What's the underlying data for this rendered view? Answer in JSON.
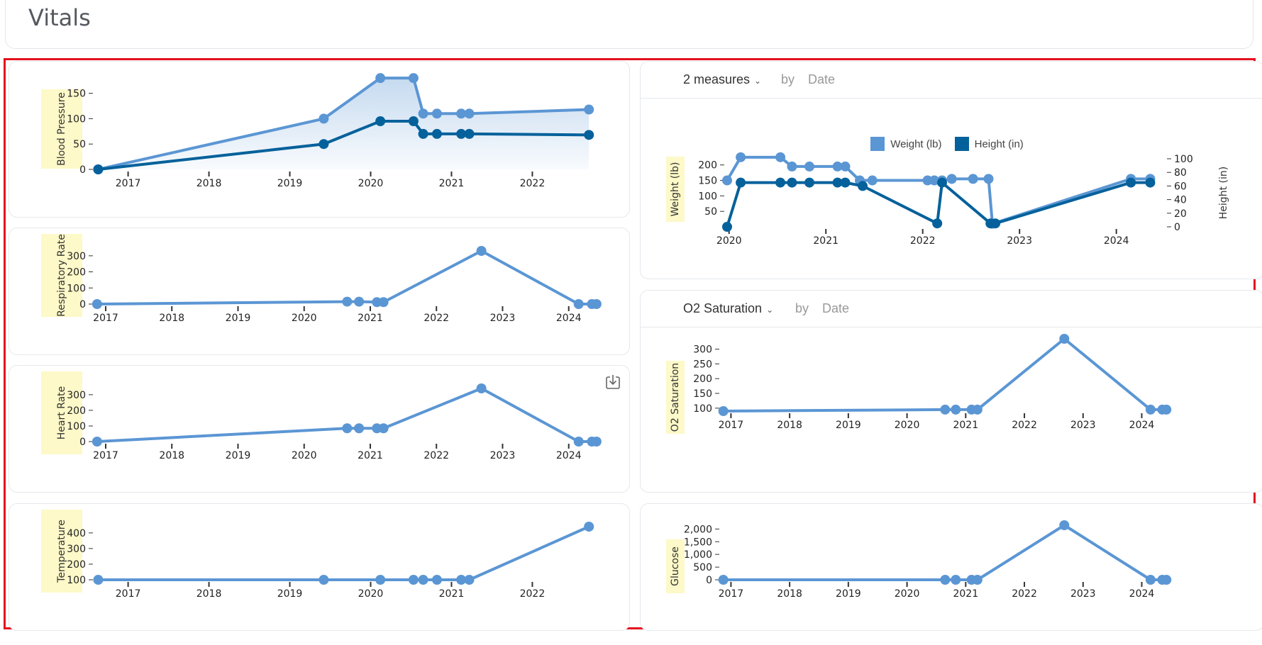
{
  "page": {
    "title": "Vitals"
  },
  "colors": {
    "light": "#5b96d4",
    "dark": "#04619b",
    "label_bg": "#fdf9c8",
    "highlight": "#e3101d"
  },
  "controls": {
    "weight_height": {
      "measure_label": "2 measures",
      "by_label": "by",
      "date_label": "Date"
    },
    "o2": {
      "measure_label": "O2 Saturation",
      "by_label": "by",
      "date_label": "Date"
    }
  },
  "legend": [
    {
      "label": "Weight (lb)",
      "color": "#5b96d4"
    },
    {
      "label": "Height (in)",
      "color": "#04619b"
    }
  ],
  "chart_data": [
    {
      "id": "blood_pressure",
      "type": "area",
      "ylabel": "Blood Pressure",
      "ylim": [
        0,
        190
      ],
      "yticks": [
        0,
        50,
        100,
        150
      ],
      "xlim": [
        2016.6,
        2022.9
      ],
      "xticks": [
        "2017",
        "2018",
        "2019",
        "2020",
        "2021",
        "2022"
      ],
      "series": [
        {
          "color": "#5b96d4",
          "x": [
            2016.63,
            2019.42,
            2020.12,
            2020.53,
            2020.65,
            2020.82,
            2021.12,
            2021.22,
            2022.7
          ],
          "y": [
            0,
            100,
            180,
            180,
            110,
            110,
            110,
            110,
            118
          ]
        },
        {
          "color": "#04619b",
          "x": [
            2016.63,
            2019.42,
            2020.12,
            2020.53,
            2020.65,
            2020.82,
            2021.12,
            2021.22,
            2022.7
          ],
          "y": [
            0,
            50,
            95,
            95,
            70,
            70,
            70,
            70,
            68
          ]
        }
      ]
    },
    {
      "id": "respiratory_rate",
      "type": "line",
      "ylabel": "Respiratory Rate",
      "ylim": [
        0,
        330
      ],
      "yticks": [
        0,
        100,
        200,
        300
      ],
      "xlim": [
        2016.85,
        2024.55
      ],
      "xticks": [
        "2017",
        "2018",
        "2019",
        "2020",
        "2021",
        "2022",
        "2023",
        "2024"
      ],
      "series": [
        {
          "color": "#5b96d4",
          "x": [
            2016.87,
            2020.65,
            2020.83,
            2021.1,
            2021.2,
            2022.68,
            2024.15,
            2024.35,
            2024.42
          ],
          "y": [
            0,
            15,
            15,
            12,
            12,
            330,
            0,
            0,
            0
          ]
        }
      ]
    },
    {
      "id": "heart_rate",
      "type": "line",
      "ylabel": "Heart Rate",
      "ylim": [
        0,
        340
      ],
      "yticks": [
        0,
        100,
        200,
        300
      ],
      "xlim": [
        2016.85,
        2024.55
      ],
      "xticks": [
        "2017",
        "2018",
        "2019",
        "2020",
        "2021",
        "2022",
        "2023",
        "2024"
      ],
      "series": [
        {
          "color": "#5b96d4",
          "x": [
            2016.87,
            2020.65,
            2020.83,
            2021.1,
            2021.2,
            2022.68,
            2024.15,
            2024.35,
            2024.42
          ],
          "y": [
            0,
            85,
            85,
            85,
            85,
            340,
            0,
            0,
            0
          ]
        }
      ]
    },
    {
      "id": "temperature",
      "type": "line",
      "ylabel": "Temperature",
      "ylim": [
        100,
        440
      ],
      "yticks": [
        100,
        200,
        300,
        400
      ],
      "xlim": [
        2016.6,
        2022.9
      ],
      "xticks": [
        "2017",
        "2018",
        "2019",
        "2020",
        "2021",
        "2022"
      ],
      "series": [
        {
          "color": "#5b96d4",
          "x": [
            2016.63,
            2019.42,
            2020.12,
            2020.53,
            2020.65,
            2020.82,
            2021.12,
            2021.22,
            2022.7
          ],
          "y": [
            100,
            100,
            100,
            100,
            100,
            100,
            100,
            100,
            440
          ]
        }
      ]
    },
    {
      "id": "weight_height",
      "type": "line",
      "ylabel": "Weight (lb)",
      "y2label": "Height (in)",
      "ylim": [
        0,
        220
      ],
      "yticks": [
        50,
        100,
        150,
        200
      ],
      "y2lim": [
        0,
        100
      ],
      "y2ticks": [
        0,
        20,
        40,
        60,
        80,
        100
      ],
      "xlim": [
        2019.98,
        2024.42
      ],
      "xticks": [
        "2020",
        "2021",
        "2022",
        "2023",
        "2024"
      ],
      "series": [
        {
          "name": "Weight (lb)",
          "color": "#5b96d4",
          "axis": "left",
          "x": [
            2019.98,
            2020.12,
            2020.53,
            2020.65,
            2020.83,
            2021.12,
            2021.2,
            2021.35,
            2021.48,
            2022.05,
            2022.12,
            2022.2,
            2022.3,
            2022.52,
            2022.68,
            2022.72,
            2024.15,
            2024.35
          ],
          "y": [
            150,
            225,
            225,
            195,
            195,
            195,
            195,
            150,
            150,
            150,
            150,
            150,
            155,
            155,
            155,
            10,
            155,
            155
          ]
        },
        {
          "name": "Height (in)",
          "color": "#04619b",
          "axis": "right",
          "x": [
            2019.98,
            2020.12,
            2020.53,
            2020.65,
            2020.83,
            2021.12,
            2021.2,
            2021.38,
            2022.15,
            2022.2,
            2022.7,
            2022.75,
            2024.15,
            2024.35
          ],
          "y": [
            0,
            65,
            65,
            65,
            65,
            65,
            65,
            60,
            5,
            65,
            5,
            5,
            65,
            65
          ]
        }
      ]
    },
    {
      "id": "o2_saturation",
      "type": "line",
      "ylabel": "O2 Saturation",
      "ylim": [
        90,
        335
      ],
      "yticks": [
        100,
        150,
        200,
        250,
        300
      ],
      "xlim": [
        2016.85,
        2024.55
      ],
      "xticks": [
        "2017",
        "2018",
        "2019",
        "2020",
        "2021",
        "2022",
        "2023",
        "2024"
      ],
      "series": [
        {
          "color": "#5b96d4",
          "x": [
            2016.87,
            2020.65,
            2020.83,
            2021.1,
            2021.2,
            2022.68,
            2024.15,
            2024.35,
            2024.42
          ],
          "y": [
            90,
            95,
            95,
            95,
            95,
            335,
            95,
            95,
            95
          ]
        }
      ]
    },
    {
      "id": "glucose",
      "type": "line",
      "ylabel": "Glucose",
      "ylim": [
        0,
        2150
      ],
      "yticks": [
        0,
        500,
        1000,
        1500,
        2000
      ],
      "ytickLabels": [
        "0",
        "500",
        "1,000",
        "1,500",
        "2,000"
      ],
      "xlim": [
        2016.85,
        2024.55
      ],
      "xticks": [
        "2017",
        "2018",
        "2019",
        "2020",
        "2021",
        "2022",
        "2023",
        "2024"
      ],
      "series": [
        {
          "color": "#5b96d4",
          "x": [
            2016.87,
            2020.65,
            2020.83,
            2021.1,
            2021.2,
            2022.68,
            2024.15,
            2024.35,
            2024.42
          ],
          "y": [
            0,
            0,
            0,
            0,
            0,
            2150,
            0,
            0,
            0
          ]
        }
      ]
    }
  ]
}
